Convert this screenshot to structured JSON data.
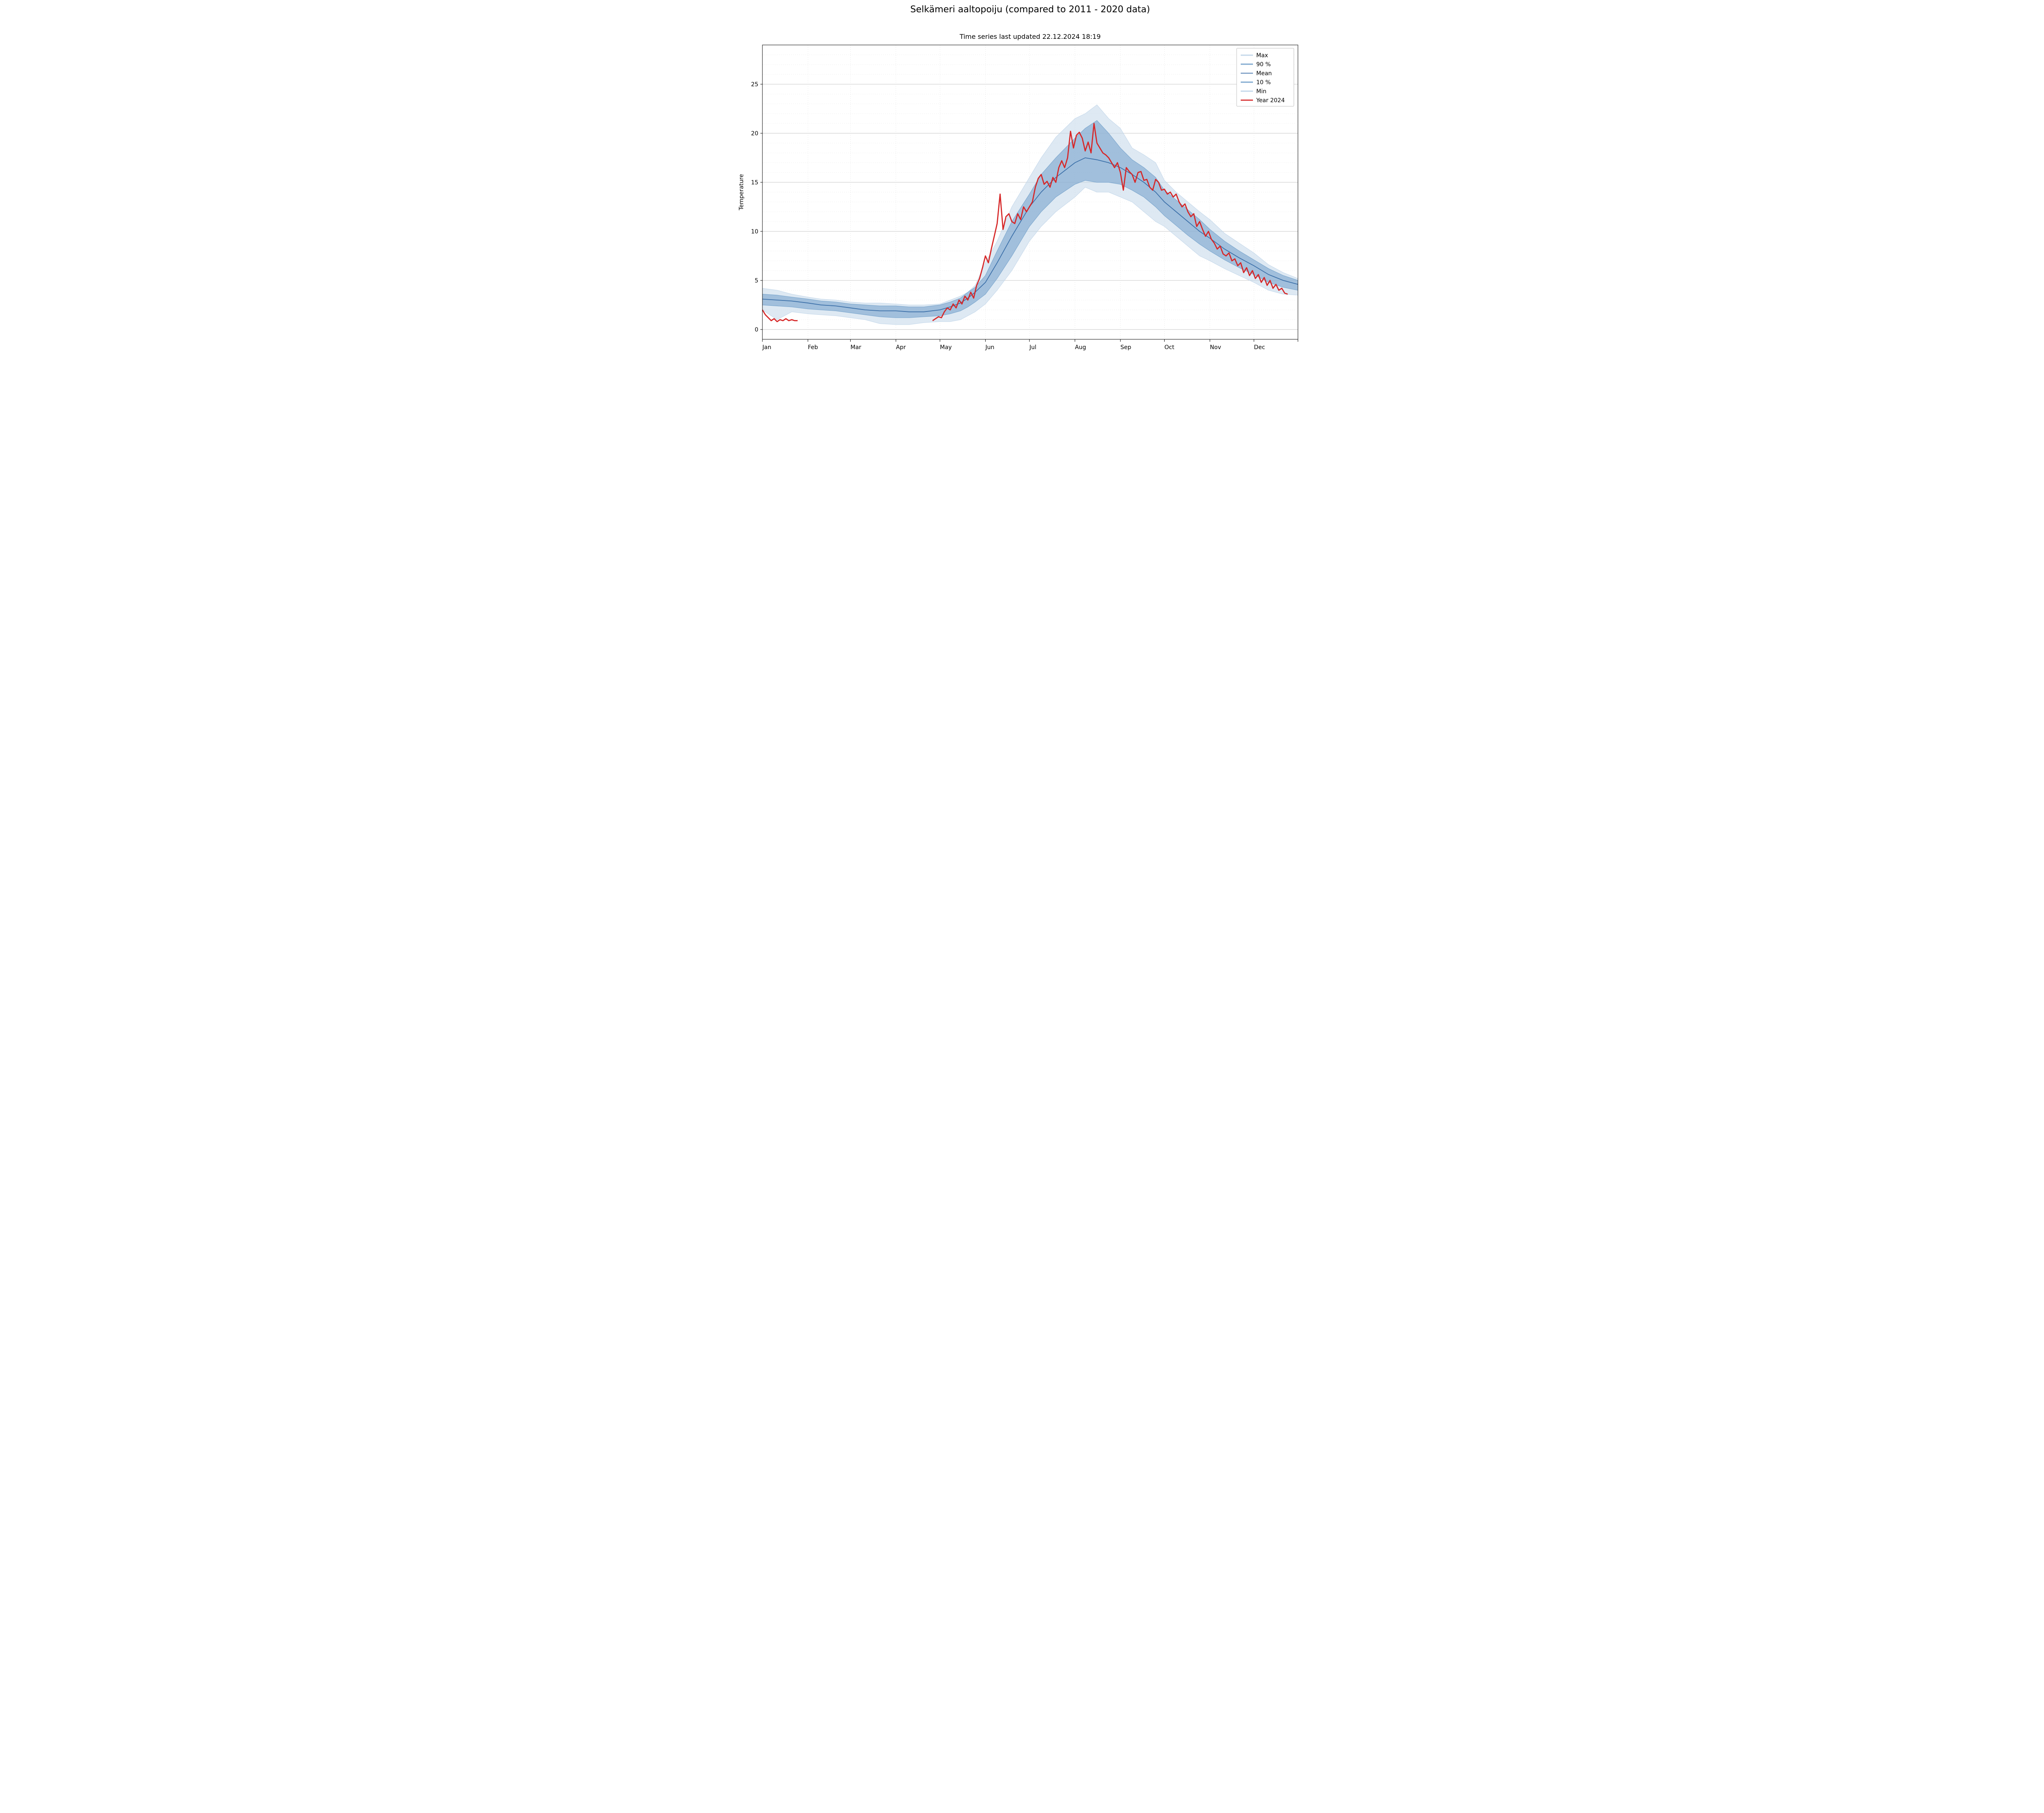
{
  "chart": {
    "type": "line",
    "title": "Selkämeri aaltopoiju (compared to 2011 - 2020 data)",
    "subtitle": "Time series last updated 22.12.2024 18:19",
    "title_fontsize": 22,
    "subtitle_fontsize": 16,
    "ylabel": "Temperature",
    "ylabel_fontsize": 14,
    "tick_fontsize": 14,
    "background_color": "#ffffff",
    "plot_background": "#ffffff",
    "axis_color": "#000000",
    "grid_major_color": "#b0b0b0",
    "grid_minor_color": "#e0e0e0",
    "grid_minor_dash": "2,3",
    "x": {
      "domain": [
        0,
        365
      ],
      "month_starts": [
        0,
        31,
        60,
        91,
        121,
        152,
        182,
        213,
        244,
        274,
        305,
        335,
        365
      ],
      "month_labels": [
        "Jan",
        "Feb",
        "Mar",
        "Apr",
        "May",
        "Jun",
        "Jul",
        "Aug",
        "Sep",
        "Oct",
        "Nov",
        "Dec"
      ]
    },
    "y": {
      "domain": [
        -1,
        29
      ],
      "major_ticks": [
        0,
        5,
        10,
        15,
        20,
        25
      ],
      "minor_step": 1
    },
    "series": {
      "max": {
        "label": "Max",
        "color": "#c3d7ea",
        "opacity": 0.55,
        "type": "band_outer"
      },
      "p90": {
        "label": "90 %",
        "color": "#7fa9cf",
        "opacity": 0.65,
        "type": "band_inner"
      },
      "mean": {
        "label": "Mean",
        "color": "#3b6fa8",
        "width": 1.8,
        "type": "line"
      },
      "p10": {
        "label": "10 %",
        "color": "#7fa9cf",
        "opacity": 0.65,
        "type": "band_inner"
      },
      "min": {
        "label": "Min",
        "color": "#c3d7ea",
        "opacity": 0.55,
        "type": "band_outer"
      },
      "year": {
        "label": "Year 2024",
        "color": "#d62728",
        "width": 2.8,
        "type": "line"
      }
    },
    "legend": {
      "position": "upper_right",
      "order": [
        "max",
        "p90",
        "mean",
        "p10",
        "min",
        "year"
      ],
      "fontsize": 14,
      "border_color": "#bfbfbf",
      "background": "#ffffff"
    },
    "climo_days": [
      0,
      10,
      20,
      31,
      40,
      50,
      60,
      70,
      80,
      91,
      100,
      110,
      121,
      128,
      135,
      140,
      145,
      152,
      160,
      170,
      182,
      190,
      200,
      213,
      220,
      228,
      236,
      244,
      252,
      260,
      268,
      274,
      282,
      290,
      298,
      305,
      315,
      325,
      335,
      345,
      355,
      365
    ],
    "climo": {
      "max": [
        4.2,
        4.0,
        3.6,
        3.3,
        3.1,
        3.0,
        2.8,
        2.7,
        2.7,
        2.6,
        2.5,
        2.5,
        2.6,
        3.0,
        3.4,
        3.8,
        4.5,
        6.8,
        9.0,
        12.5,
        15.5,
        17.5,
        19.6,
        21.5,
        22.0,
        22.9,
        21.5,
        20.5,
        18.5,
        17.8,
        17.0,
        15.2,
        14.0,
        13.0,
        12.0,
        11.2,
        9.8,
        8.8,
        7.8,
        6.6,
        5.8,
        5.2
      ],
      "p90": [
        3.6,
        3.5,
        3.3,
        3.1,
        2.9,
        2.8,
        2.6,
        2.5,
        2.4,
        2.4,
        2.3,
        2.3,
        2.5,
        2.8,
        3.2,
        3.8,
        4.3,
        5.5,
        8.0,
        11.0,
        13.8,
        15.8,
        17.5,
        19.5,
        20.5,
        21.3,
        20.0,
        18.5,
        17.3,
        16.5,
        15.5,
        14.2,
        13.2,
        12.2,
        11.2,
        10.2,
        9.0,
        8.0,
        7.1,
        6.2,
        5.5,
        5.0
      ],
      "mean": [
        3.1,
        3.0,
        2.9,
        2.7,
        2.5,
        2.4,
        2.2,
        2.0,
        1.9,
        1.9,
        1.8,
        1.8,
        2.0,
        2.3,
        2.7,
        3.2,
        3.8,
        4.8,
        6.8,
        9.5,
        12.5,
        14.0,
        15.5,
        17.0,
        17.5,
        17.3,
        17.0,
        16.5,
        15.8,
        15.0,
        14.0,
        13.0,
        12.0,
        11.0,
        10.0,
        9.3,
        8.2,
        7.3,
        6.5,
        5.6,
        5.0,
        4.6
      ],
      "p10": [
        2.5,
        2.4,
        2.3,
        2.1,
        2.0,
        1.9,
        1.7,
        1.5,
        1.3,
        1.2,
        1.2,
        1.3,
        1.4,
        1.6,
        1.9,
        2.3,
        2.8,
        3.6,
        5.2,
        7.5,
        10.5,
        12.0,
        13.5,
        14.8,
        15.2,
        15.0,
        15.0,
        14.8,
        14.2,
        13.5,
        12.5,
        11.6,
        10.6,
        9.6,
        8.7,
        8.0,
        7.1,
        6.3,
        5.6,
        4.8,
        4.3,
        4.0
      ],
      "min": [
        2.0,
        1.0,
        1.8,
        1.6,
        1.5,
        1.4,
        1.2,
        1.0,
        0.6,
        0.5,
        0.5,
        0.7,
        0.8,
        0.8,
        1.0,
        1.4,
        1.8,
        2.6,
        4.0,
        6.0,
        9.0,
        10.5,
        12.0,
        13.5,
        14.5,
        14.0,
        14.0,
        13.5,
        13.0,
        12.0,
        11.0,
        10.5,
        9.5,
        8.5,
        7.5,
        7.0,
        6.2,
        5.5,
        4.8,
        4.0,
        3.6,
        3.5
      ]
    },
    "year2024": {
      "seg1": {
        "days": [
          0,
          2,
          4,
          6,
          8,
          10,
          12,
          14,
          16,
          18,
          20,
          22,
          24
        ],
        "vals": [
          2.0,
          1.5,
          1.2,
          0.9,
          1.1,
          0.8,
          1.0,
          0.9,
          1.1,
          0.9,
          1.0,
          0.9,
          0.9
        ]
      },
      "seg2": {
        "days": [
          116,
          118,
          120,
          122,
          124,
          126,
          128,
          130,
          132,
          134,
          136,
          138,
          140,
          142,
          144,
          146,
          148,
          150,
          152,
          154,
          156,
          158,
          160,
          162,
          164,
          166,
          168,
          170,
          172,
          174,
          176,
          178,
          180,
          182,
          184,
          186,
          188,
          190,
          192,
          194,
          196,
          198,
          200,
          202,
          204,
          206,
          208,
          210,
          212,
          214,
          216,
          218,
          220,
          222,
          224,
          226,
          228,
          230,
          232,
          234,
          236,
          238,
          240,
          242,
          244,
          246,
          248,
          250,
          252,
          254,
          256,
          258,
          260,
          262,
          264,
          266,
          268,
          270,
          272,
          274,
          276,
          278,
          280,
          282,
          284,
          286,
          288,
          290,
          292,
          294,
          296,
          298,
          300,
          302,
          304,
          306,
          308,
          310,
          312,
          314,
          316,
          318,
          320,
          322,
          324,
          326,
          328,
          330,
          332,
          334,
          336,
          338,
          340,
          342,
          344,
          346,
          348,
          350,
          352,
          354,
          356,
          358
        ],
        "vals": [
          0.9,
          1.1,
          1.3,
          1.2,
          1.8,
          2.2,
          2.0,
          2.6,
          2.2,
          3.0,
          2.6,
          3.4,
          3.0,
          3.8,
          3.2,
          4.5,
          5.2,
          6.3,
          7.5,
          6.8,
          8.2,
          9.5,
          10.8,
          13.8,
          10.2,
          11.5,
          11.8,
          11.0,
          10.8,
          11.8,
          11.2,
          12.5,
          12.0,
          12.5,
          13.0,
          14.5,
          15.4,
          15.8,
          14.8,
          15.1,
          14.5,
          15.5,
          15.0,
          16.5,
          17.2,
          16.5,
          17.5,
          20.2,
          18.5,
          19.8,
          20.1,
          19.5,
          18.2,
          19.1,
          18.0,
          21.0,
          19.0,
          18.5,
          18.0,
          17.8,
          17.5,
          17.0,
          16.5,
          17.0,
          16.0,
          14.2,
          16.5,
          16.1,
          15.8,
          15.0,
          16.0,
          16.1,
          15.2,
          15.3,
          14.5,
          14.2,
          15.3,
          15.0,
          14.2,
          14.3,
          13.8,
          14.0,
          13.5,
          13.8,
          13.0,
          12.5,
          12.8,
          12.0,
          11.5,
          11.8,
          10.5,
          11.0,
          10.2,
          9.5,
          10.0,
          9.2,
          8.8,
          8.2,
          8.5,
          7.7,
          7.5,
          7.8,
          7.0,
          7.2,
          6.5,
          6.8,
          5.8,
          6.3,
          5.5,
          6.0,
          5.2,
          5.6,
          4.8,
          5.3,
          4.5,
          5.0,
          4.2,
          4.6,
          4.0,
          4.2,
          3.7,
          3.6
        ]
      }
    }
  }
}
